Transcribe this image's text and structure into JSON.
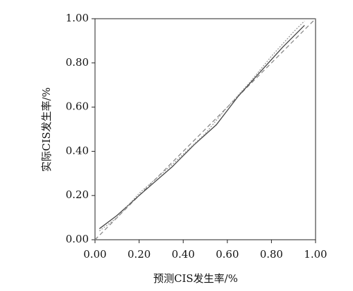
{
  "chart_data": {
    "type": "line",
    "x_label": "预测CIS发生率/%",
    "y_label": "实际CIS发生率/%",
    "xlim": [
      0,
      1
    ],
    "ylim": [
      0,
      1
    ],
    "xticks": [
      {
        "value": 0,
        "label": "0.00"
      },
      {
        "value": 0.2,
        "label": "0.20"
      },
      {
        "value": 0.4,
        "label": "0.40"
      },
      {
        "value": 0.6,
        "label": "0.60"
      },
      {
        "value": 0.8,
        "label": "0.80"
      },
      {
        "value": 1,
        "label": "1.00"
      }
    ],
    "yticks": [
      {
        "value": 0,
        "label": "0.00"
      },
      {
        "value": 0.2,
        "label": "0.20"
      },
      {
        "value": 0.4,
        "label": "0.40"
      },
      {
        "value": 0.6,
        "label": "0.60"
      },
      {
        "value": 0.8,
        "label": "0.80"
      },
      {
        "value": 1,
        "label": "1.00"
      }
    ],
    "series": [
      {
        "color": "#888888",
        "dash": "6,4",
        "x": [
          0,
          1
        ],
        "values": [
          0,
          1
        ]
      },
      {
        "color": "#444444",
        "dash": "none",
        "x": [
          0.02,
          0.1,
          0.2,
          0.35,
          0.45,
          0.55,
          0.65,
          0.75,
          0.85,
          0.95
        ],
        "values": [
          0.05,
          0.11,
          0.2,
          0.33,
          0.43,
          0.52,
          0.65,
          0.76,
          0.87,
          0.97
        ]
      },
      {
        "color": "#999999",
        "dash": "2,2",
        "x": [
          0.02,
          0.1,
          0.2,
          0.35,
          0.5,
          0.6,
          0.7,
          0.8,
          0.9,
          0.95
        ],
        "values": [
          0.04,
          0.1,
          0.21,
          0.34,
          0.48,
          0.6,
          0.71,
          0.83,
          0.94,
          0.99
        ]
      }
    ]
  }
}
